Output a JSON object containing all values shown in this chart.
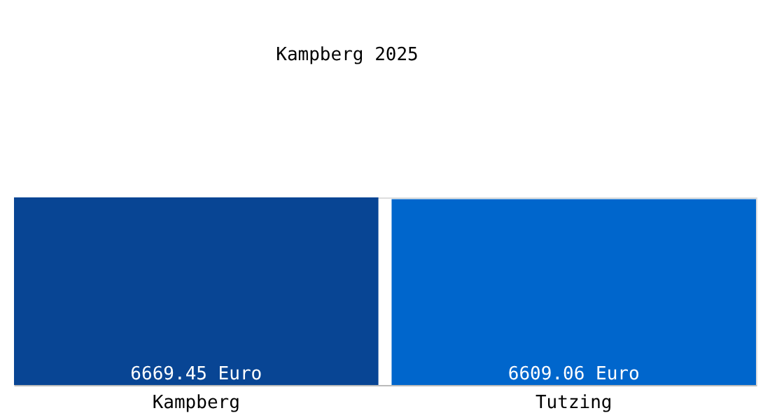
{
  "chart_data": {
    "type": "bar",
    "title": "Kampberg 2025",
    "categories": [
      "Kampberg",
      "Tutzing"
    ],
    "values": [
      6669.45,
      6609.06
    ],
    "colors": [
      "#084594",
      "#0066cc"
    ],
    "value_labels": [
      "6669.45 Euro",
      "6609.06 Euro"
    ]
  }
}
